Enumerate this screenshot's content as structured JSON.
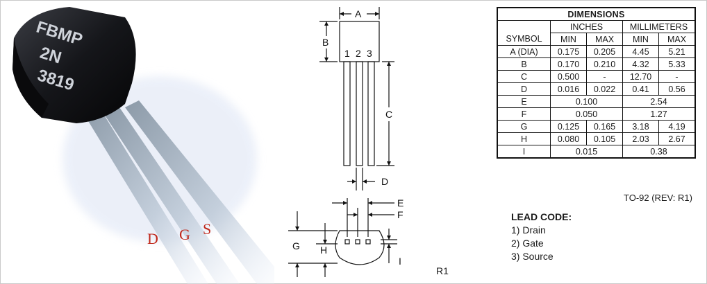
{
  "photo": {
    "marking": [
      "FBMP",
      "2N",
      "3819"
    ],
    "lead_letters": [
      "D",
      "G",
      "S"
    ]
  },
  "drawing": {
    "labels": {
      "A": "A",
      "B": "B",
      "C": "C",
      "D": "D",
      "E": "E",
      "F": "F",
      "G": "G",
      "H": "H",
      "I": "I"
    },
    "pins": [
      "1",
      "2",
      "3"
    ]
  },
  "table": {
    "title": "DIMENSIONS",
    "group_inches": "INCHES",
    "group_mm": "MILLIMETERS",
    "symbol_header": "SYMBOL",
    "min": "MIN",
    "max": "MAX",
    "rows": [
      {
        "sym": "A (DIA)",
        "in_min": "0.175",
        "in_max": "0.205",
        "mm_min": "4.45",
        "mm_max": "5.21"
      },
      {
        "sym": "B",
        "in_min": "0.170",
        "in_max": "0.210",
        "mm_min": "4.32",
        "mm_max": "5.33"
      },
      {
        "sym": "C",
        "in_min": "0.500",
        "in_max": "-",
        "mm_min": "12.70",
        "mm_max": "-"
      },
      {
        "sym": "D",
        "in_min": "0.016",
        "in_max": "0.022",
        "mm_min": "0.41",
        "mm_max": "0.56"
      },
      {
        "sym": "E",
        "in_nom": "0.100",
        "mm_nom": "2.54"
      },
      {
        "sym": "F",
        "in_nom": "0.050",
        "mm_nom": "1.27"
      },
      {
        "sym": "G",
        "in_min": "0.125",
        "in_max": "0.165",
        "mm_min": "3.18",
        "mm_max": "4.19"
      },
      {
        "sym": "H",
        "in_min": "0.080",
        "in_max": "0.105",
        "mm_min": "2.03",
        "mm_max": "2.67"
      },
      {
        "sym": "I",
        "in_nom": "0.015",
        "mm_nom": "0.38"
      }
    ],
    "revision": "TO-92 (REV: R1)"
  },
  "lead_code": {
    "heading": "LEAD CODE:",
    "items": [
      "1) Drain",
      "2) Gate",
      "3) Source"
    ]
  },
  "footer": {
    "rev_mark": "R1"
  }
}
